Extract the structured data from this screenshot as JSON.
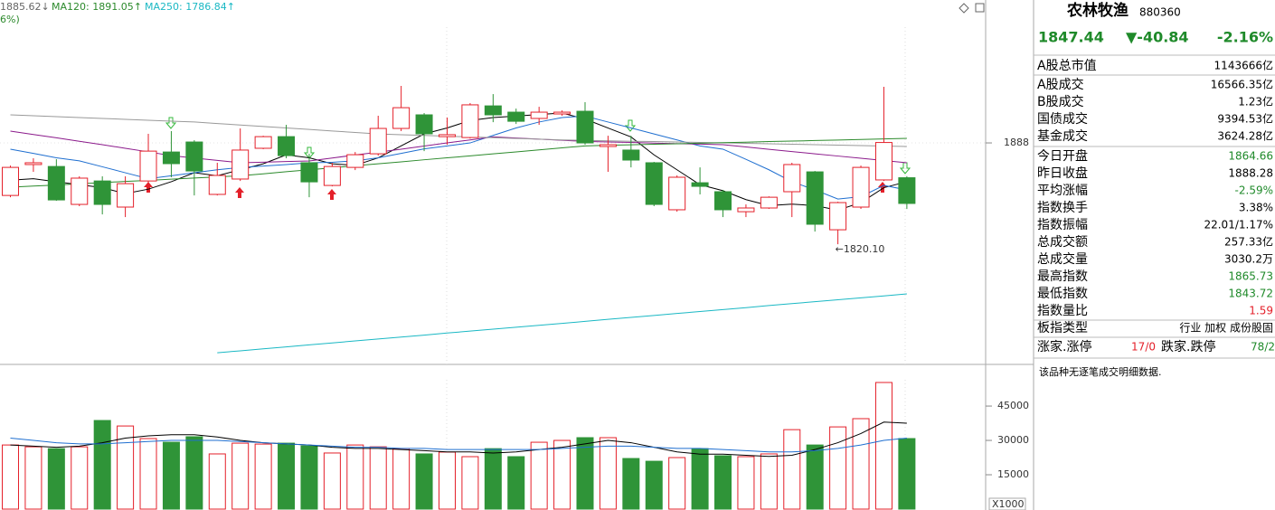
{
  "header": {
    "ma60": "1885.62↓",
    "ma120": "MA120: 1891.05↑",
    "ma250": "MA250: 1786.84↑",
    "pct": "6%)"
  },
  "chart_data": [
    {
      "type": "candlestick",
      "categories": [
        null,
        null,
        null,
        null,
        null,
        null,
        null,
        null,
        null,
        null,
        null,
        null,
        null,
        null,
        null,
        null,
        null,
        null,
        null,
        null,
        null,
        null,
        null,
        null,
        null,
        null,
        null,
        null,
        null,
        null,
        null,
        null,
        null,
        null,
        null,
        null,
        null,
        null,
        null,
        null
      ],
      "open": [
        1852.8,
        1873.5,
        1872.2,
        1846.8,
        1862.5,
        1845.0,
        1862.5,
        1881.9,
        1888.6,
        1853.5,
        1863.8,
        1884.4,
        1892.2,
        1874.7,
        1859.5,
        1871.6,
        1880.7,
        1897.7,
        1906.8,
        1892.2,
        1891.6,
        1912.8,
        1908.6,
        1904.4,
        1907.4,
        1909.2,
        1885.6,
        1883.2,
        1874.7,
        1843.2,
        1861.3,
        1855.3,
        1841.9,
        1844.4,
        1855.3,
        1868.6,
        1829.8,
        1845.0,
        1863.2,
        1864.66
      ],
      "high": [
        1872.8,
        1877.7,
        1877.1,
        1865.6,
        1865.6,
        1865.6,
        1894.1,
        1895.9,
        1889.8,
        1874.7,
        1897.7,
        1892.8,
        1900.1,
        1880.7,
        1874.7,
        1881.9,
        1906.2,
        1926.2,
        1908.0,
        1905.0,
        1914.7,
        1920.7,
        1911.0,
        1912.2,
        1909.8,
        1915.3,
        1892.8,
        1892.8,
        1875.3,
        1866.2,
        1871.6,
        1856.5,
        1846.8,
        1852.2,
        1874.7,
        1869.2,
        1848.6,
        1872.8,
        1925.6,
        1865.73
      ],
      "low": [
        1851.6,
        1868.6,
        1849.2,
        1845.6,
        1840.1,
        1838.3,
        1860.7,
        1865.0,
        1852.8,
        1852.8,
        1862.5,
        1883.8,
        1877.7,
        1851.6,
        1858.9,
        1869.8,
        1879.5,
        1895.9,
        1882.5,
        1886.8,
        1890.9,
        1901.9,
        1900.7,
        1900.1,
        1906.2,
        1886.8,
        1868.6,
        1871.6,
        1845.6,
        1841.9,
        1853.5,
        1838.3,
        1838.3,
        1843.8,
        1838.3,
        1828.6,
        1820.1,
        1843.8,
        1862.5,
        1843.72
      ],
      "close": [
        1871.6,
        1874.7,
        1849.8,
        1864.4,
        1846.8,
        1860.7,
        1882.5,
        1874.1,
        1869.2,
        1866.2,
        1883.2,
        1892.2,
        1879.5,
        1861.9,
        1872.2,
        1880.1,
        1897.7,
        1911.6,
        1894.1,
        1893.5,
        1913.5,
        1906.8,
        1902.5,
        1908.6,
        1908.6,
        1888.0,
        1886.8,
        1876.5,
        1846.8,
        1865.0,
        1858.9,
        1843.2,
        1844.4,
        1851.6,
        1873.5,
        1833.5,
        1848.0,
        1871.6,
        1888.28,
        1847.44
      ],
      "up_color": "#e4202a",
      "down_color": "#2f9438",
      "series": [
        {
          "color": "#000000",
          "values": [
            1863,
            1864,
            1862,
            1860,
            1858,
            1854,
            1857,
            1862,
            1868,
            1866,
            1870,
            1874,
            1880,
            1878,
            1874,
            1873,
            1878,
            1886,
            1894,
            1898,
            1903,
            1905,
            1906,
            1907,
            1908,
            1904,
            1898,
            1892,
            1880,
            1870,
            1860,
            1856,
            1850,
            1846,
            1847,
            1846,
            1843,
            1848,
            1858,
            1862
          ]
        },
        {
          "color": "#1f6fd0",
          "values": [
            1883.8,
            1881,
            1878,
            1876,
            1872,
            1868,
            1864,
            1866,
            1868,
            1870,
            1871.6,
            1872.5,
            1873.5,
            1874.7,
            1875,
            1876,
            1878,
            1881,
            1884,
            1886,
            1888,
            1893,
            1898,
            1902,
            1905,
            1906,
            1902,
            1898,
            1894,
            1890,
            1886,
            1883.8,
            1877,
            1870,
            1862,
            1856.5,
            1850.4,
            1852,
            1859.5,
            1856.5
          ]
        },
        {
          "color": "#8b1a8b",
          "values": [
            1895.9,
            1893.6,
            1891.4,
            1889.1,
            1886.8,
            1884.4,
            1882.0,
            1879.5,
            1877.9,
            1876.3,
            1874.7,
            1875.1,
            1875.5,
            1875.9,
            1877.9,
            1879.9,
            1881.8,
            1883.8,
            1885.9,
            1888.0,
            1890.0,
            1892.0,
            1891.3,
            1890.5,
            1889.8,
            1889.0,
            1888.6,
            1888.3,
            1887.9,
            1887.5,
            1887.2,
            1886.8,
            1885.3,
            1883.7,
            1882.2,
            1880.7,
            1879.2,
            1877.7,
            1876.2,
            1874.7
          ]
        },
        {
          "color": "#999999",
          "values": [
            1906.8,
            1906.2,
            1905.6,
            1905.0,
            1904.4,
            1903.8,
            1903.2,
            1902.6,
            1902.0,
            1901.0,
            1900.0,
            1899.0,
            1898.0,
            1897.0,
            1896.0,
            1895.0,
            1894.0,
            1893.5,
            1893.0,
            1892.5,
            1892.0,
            1891.5,
            1891.0,
            1890.5,
            1890.0,
            1889.7,
            1889.4,
            1889.1,
            1888.9,
            1888.6,
            1888.3,
            1888.0,
            1887.7,
            1887.4,
            1887.1,
            1886.8,
            1886.5,
            1886.2,
            1885.9,
            1885.62
          ]
        },
        {
          "color": "#2c8a2c",
          "values": [
            1858.3,
            1859.1,
            1859.8,
            1860.6,
            1861.4,
            1862.2,
            1862.9,
            1863.7,
            1864.5,
            1865.2,
            1866.0,
            1867.3,
            1868.7,
            1870.0,
            1871.3,
            1872.7,
            1874.0,
            1875.3,
            1876.7,
            1878.0,
            1879.3,
            1880.7,
            1882.0,
            1883.3,
            1884.7,
            1886.0,
            1886.4,
            1886.7,
            1887.1,
            1887.4,
            1887.8,
            1888.2,
            1888.5,
            1888.9,
            1889.2,
            1889.6,
            1889.9,
            1890.3,
            1890.7,
            1891.05
          ]
        },
        {
          "color": "#1ab8c4",
          "values": [
            null,
            null,
            null,
            null,
            null,
            null,
            null,
            null,
            null,
            1747.4,
            1748.7,
            1750.0,
            1751.3,
            1752.7,
            1754.0,
            1755.3,
            1756.6,
            1757.9,
            1759.2,
            1760.6,
            1761.9,
            1763.2,
            1764.5,
            1765.8,
            1767.1,
            1768.4,
            1769.8,
            1771.1,
            1772.4,
            1773.7,
            1775.0,
            1776.3,
            1777.6,
            1779.0,
            1780.3,
            1781.6,
            1782.9,
            1784.2,
            1785.5,
            1786.84
          ]
        }
      ],
      "ylim": [
        1742,
        1980
      ],
      "yticks": [
        1888
      ],
      "annotation": "←1820.10"
    },
    {
      "type": "bar",
      "values": [
        28000,
        27200,
        26400,
        27200,
        38700,
        36300,
        30800,
        29200,
        31600,
        24100,
        28800,
        28400,
        28800,
        27600,
        24500,
        28000,
        27200,
        26400,
        24100,
        24900,
        22900,
        26400,
        22900,
        29200,
        30000,
        31200,
        31200,
        22100,
        20900,
        22500,
        26400,
        23300,
        22900,
        24100,
        34700,
        28000,
        35900,
        39500,
        55300,
        30800
      ],
      "series": [
        {
          "color": "#000000",
          "values": [
            28000,
            27500,
            27000,
            27500,
            29000,
            31000,
            32000,
            32500,
            32500,
            31500,
            30000,
            29000,
            28500,
            28000,
            27000,
            26500,
            26500,
            26000,
            25500,
            25000,
            25000,
            24500,
            25000,
            26000,
            27000,
            28500,
            30000,
            29000,
            27000,
            25000,
            24000,
            24000,
            23500,
            23000,
            23500,
            26000,
            29000,
            33000,
            38000,
            37500
          ]
        },
        {
          "color": "#1f6fd0",
          "values": [
            31000,
            30000,
            29000,
            28500,
            28500,
            29000,
            29500,
            30000,
            30000,
            30000,
            29500,
            29000,
            28500,
            28000,
            27500,
            27000,
            27000,
            26500,
            26500,
            26000,
            26000,
            26000,
            26000,
            26000,
            26500,
            27000,
            27500,
            27500,
            27000,
            26500,
            26500,
            26000,
            25500,
            25000,
            25000,
            25500,
            26500,
            28000,
            30000,
            31000
          ]
        }
      ],
      "ylim": [
        0,
        62400
      ],
      "yticks": [
        45000,
        30000,
        15000
      ],
      "unit_label": "X1000"
    }
  ],
  "panel": {
    "name": "农林牧渔",
    "code": "880360",
    "price": "1847.44",
    "change": "▼-40.84",
    "change_pct": "-2.16%",
    "rows": [
      [
        "A股总市值",
        "1143666亿"
      ],
      [
        "A股成交",
        "16566.35亿"
      ],
      [
        "B股成交",
        "1.23亿"
      ],
      [
        "国债成交",
        "9394.53亿"
      ],
      [
        "基金成交",
        "3624.28亿"
      ],
      [
        "今日开盘",
        "1864.66"
      ],
      [
        "昨日收盘",
        "1888.28"
      ],
      [
        "平均涨幅",
        "-2.59%"
      ],
      [
        "指数换手",
        "3.38%"
      ],
      [
        "指数振幅",
        "22.01/1.17%"
      ],
      [
        "总成交额",
        "257.33亿"
      ],
      [
        "总成交量",
        "3030.2万"
      ],
      [
        "最高指数",
        "1865.73"
      ],
      [
        "最低指数",
        "1843.72"
      ],
      [
        "指数量比",
        "1.59"
      ],
      [
        "板指类型",
        "行业 加权 成份股固"
      ]
    ],
    "breadth": [
      "涨家.涨停",
      "17/0",
      "跌家.跌停",
      "78/2"
    ],
    "note": "该品种无逐笔成交明细数据."
  }
}
